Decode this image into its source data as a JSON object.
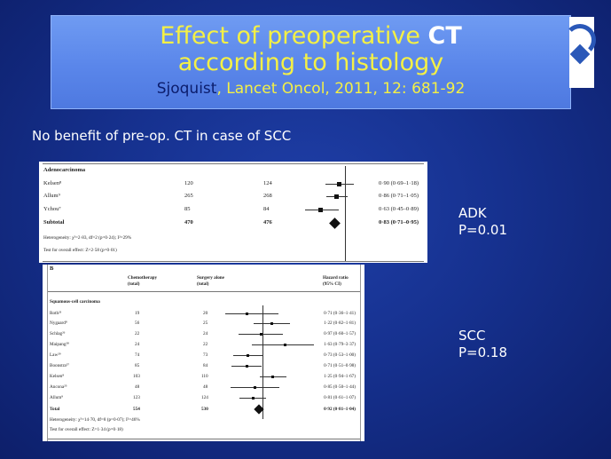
{
  "slide": {
    "title_line1_a": "Effect of preoperative ",
    "title_line1_b": "CT",
    "title_line2": "according to histology",
    "subtitle_author": "Sjoquist",
    "subtitle_rest": ", Lancet Oncol, 2011, 12: 681-92",
    "note": "No benefit of pre-op. CT in case of SCC",
    "adk_label": "ADK",
    "adk_p": "P=0.01",
    "scc_label": "SCC",
    "scc_p": "P=0.18"
  },
  "forest_adeno": {
    "heading": "Adenocarcinoma",
    "rows": [
      {
        "study": "Kelsen⁸",
        "chemo": "120",
        "surgery": "124",
        "hr": "0·90 (0·69–1·18)"
      },
      {
        "study": "Allum⁹",
        "chemo": "265",
        "surgery": "268",
        "hr": "0·86 (0·71–1·05)"
      },
      {
        "study": "Ychou⁷",
        "chemo": "85",
        "surgery": "84",
        "hr": "0·63 (0·45–0·89)"
      }
    ],
    "subtotal": {
      "study": "Subtotal",
      "chemo": "470",
      "surgery": "476",
      "hr": "0·83 (0·71–0·95)"
    },
    "heterogeneity": "Heterogeneity: χ²=2·83, df=2 (p=0·24); I²=29%",
    "overall": "Test for overall effect: Z=2·58 (p=0·01)",
    "estimates": [
      0.9,
      0.86,
      0.63
    ],
    "ci_low": [
      0.69,
      0.71,
      0.45
    ],
    "ci_high": [
      1.18,
      1.05,
      0.89
    ],
    "pooled": 0.83
  },
  "forest_scc": {
    "panel_label": "B",
    "col_chemo": "Chemotherapy",
    "col_chemo2": "(total)",
    "col_surgery": "Surgery alone",
    "col_surgery2": "(total)",
    "col_hr": "Hazard ratio",
    "col_hr2": "(95% CI)",
    "heading": "Squamous-cell carcinoma",
    "rows": [
      {
        "study": "Roth²³",
        "chemo": "19",
        "surgery": "20",
        "hr": "0·71 (0·36–1·41)"
      },
      {
        "study": "Nygaard⁸",
        "chemo": "56",
        "surgery": "25",
        "hr": "1·22 (0·82–1·81)"
      },
      {
        "study": "Schlag²⁶",
        "chemo": "22",
        "surgery": "24",
        "hr": "0·97 (0·60–1·57)"
      },
      {
        "study": "Maipang²⁸",
        "chemo": "24",
        "surgery": "22",
        "hr": "1·63 (0·79–3·37)"
      },
      {
        "study": "Law²⁹",
        "chemo": "74",
        "surgery": "73",
        "hr": "0·73 (0·53–1·00)"
      },
      {
        "study": "Boonstra³⁷",
        "chemo": "85",
        "surgery": "84",
        "hr": "0·71 (0·51–0·98)"
      },
      {
        "study": "Kelsen⁸",
        "chemo": "103",
        "surgery": "110",
        "hr": "1·25 (0·94–1·67)"
      },
      {
        "study": "Ancona²⁵",
        "chemo": "48",
        "surgery": "48",
        "hr": "0·85 (0·50–1·44)"
      },
      {
        "study": "Allum⁹",
        "chemo": "123",
        "surgery": "124",
        "hr": "0·81 (0·61–1·07)"
      }
    ],
    "total": {
      "study": "Total",
      "chemo": "554",
      "surgery": "530",
      "hr": "0·92 (0·81–1·04)"
    },
    "heterogeneity": "Heterogeneity: χ²=14·70, df=8 (p=0·07); I²=46%",
    "overall": "Test for overall effect: Z=1·34 (p=0·18)",
    "estimates": [
      0.71,
      1.22,
      0.97,
      1.63,
      0.73,
      0.71,
      1.25,
      0.85,
      0.81
    ],
    "ci_low": [
      0.36,
      0.82,
      0.6,
      0.79,
      0.53,
      0.51,
      0.94,
      0.5,
      0.61
    ],
    "ci_high": [
      1.41,
      1.81,
      1.57,
      3.37,
      1.0,
      0.98,
      1.67,
      1.44,
      1.07
    ],
    "pooled": 0.92
  },
  "colors": {
    "title_yellow": "#f4f045",
    "author_navy": "#0b1c6b",
    "background_blue": "#16318f",
    "title_box_blue": "#5a86ea"
  }
}
